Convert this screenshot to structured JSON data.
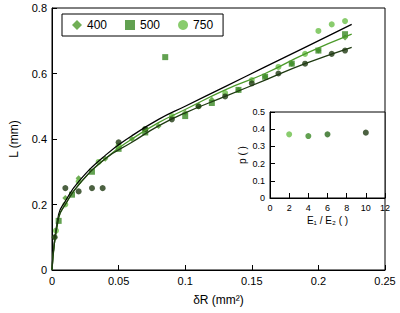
{
  "chart_data": [
    {
      "type": "scatter",
      "x_label": "δR (mm²)",
      "y_label": "L (mm)",
      "xlim": [
        0,
        0.25
      ],
      "xticks": [
        0,
        0.05,
        0.1,
        0.15,
        0.2,
        0.25
      ],
      "ylim": [
        0,
        0.8
      ],
      "yticks": [
        0,
        0.2,
        0.4,
        0.6,
        0.8
      ],
      "grid": false,
      "legend": "upper left",
      "series": [
        {
          "name": "400",
          "color": "#4c9a2a",
          "marker": "diamond",
          "x": [
            0.002,
            0.01,
            0.02,
            0.04,
            0.06,
            0.08,
            0.1,
            0.12,
            0.14,
            0.16,
            0.18,
            0.2,
            0.22
          ],
          "values": [
            0.1,
            0.22,
            0.28,
            0.34,
            0.4,
            0.44,
            0.48,
            0.52,
            0.55,
            0.59,
            0.63,
            0.67,
            0.71
          ]
        },
        {
          "name": "500",
          "color": "#3b8a26",
          "marker": "square",
          "x": [
            0.005,
            0.015,
            0.03,
            0.05,
            0.07,
            0.085,
            0.1,
            0.12,
            0.14,
            0.16,
            0.18,
            0.2,
            0.22
          ],
          "values": [
            0.15,
            0.23,
            0.3,
            0.37,
            0.42,
            0.65,
            0.47,
            0.51,
            0.55,
            0.59,
            0.63,
            0.67,
            0.72
          ]
        },
        {
          "name": "750",
          "color": "#6cbf48",
          "marker": "circle",
          "x": [
            0.003,
            0.01,
            0.02,
            0.035,
            0.05,
            0.07,
            0.09,
            0.11,
            0.13,
            0.15,
            0.17,
            0.19,
            0.2,
            0.21,
            0.22
          ],
          "values": [
            0.12,
            0.2,
            0.27,
            0.33,
            0.38,
            0.43,
            0.47,
            0.5,
            0.54,
            0.58,
            0.62,
            0.66,
            0.73,
            0.75,
            0.76
          ]
        },
        {
          "color": "#1f3a12",
          "marker": "circle",
          "x": [
            0.002,
            0.01,
            0.02,
            0.03,
            0.038,
            0.05,
            0.07,
            0.09,
            0.11,
            0.13,
            0.15,
            0.17,
            0.19,
            0.21,
            0.22
          ],
          "values": [
            0.1,
            0.25,
            0.24,
            0.25,
            0.25,
            0.39,
            0.43,
            0.46,
            0.5,
            0.53,
            0.57,
            0.6,
            0.63,
            0.66,
            0.67
          ]
        }
      ],
      "fits": [
        {
          "color": "#000000",
          "line_style": "solid",
          "x": [
            0,
            0.005,
            0.01,
            0.02,
            0.04,
            0.06,
            0.08,
            0.1,
            0.13,
            0.16,
            0.19,
            0.225
          ],
          "values": [
            0,
            0.17,
            0.21,
            0.27,
            0.35,
            0.41,
            0.46,
            0.5,
            0.56,
            0.62,
            0.68,
            0.75
          ]
        },
        {
          "color": "#4c9a2a",
          "line_style": "solid",
          "x": [
            0,
            0.005,
            0.01,
            0.02,
            0.04,
            0.06,
            0.08,
            0.1,
            0.13,
            0.16,
            0.19,
            0.225
          ],
          "values": [
            0,
            0.16,
            0.2,
            0.26,
            0.34,
            0.4,
            0.45,
            0.49,
            0.55,
            0.6,
            0.66,
            0.72
          ]
        },
        {
          "color": "#1f3a12",
          "line_style": "solid",
          "x": [
            0,
            0.005,
            0.01,
            0.02,
            0.04,
            0.06,
            0.08,
            0.1,
            0.13,
            0.16,
            0.19,
            0.225
          ],
          "values": [
            0,
            0.16,
            0.2,
            0.26,
            0.34,
            0.39,
            0.44,
            0.48,
            0.53,
            0.58,
            0.63,
            0.68
          ]
        }
      ]
    },
    {
      "type": "scatter",
      "x_label": "E₁ / E₂ ( )",
      "y_label": "p ( )",
      "xlim": [
        0,
        12
      ],
      "xticks": [
        0,
        2,
        4,
        6,
        8,
        10,
        12
      ],
      "ylim": [
        0,
        0.5
      ],
      "yticks": [
        0,
        0.1,
        0.2,
        0.3,
        0.4,
        0.5
      ],
      "grid": false,
      "marker": "circle",
      "x": [
        2,
        4,
        6,
        10
      ],
      "values": [
        0.37,
        0.36,
        0.37,
        0.38
      ],
      "colors": [
        "#6cbf48",
        "#3b8a26",
        "#2a6a1c",
        "#1f3a12"
      ]
    }
  ]
}
